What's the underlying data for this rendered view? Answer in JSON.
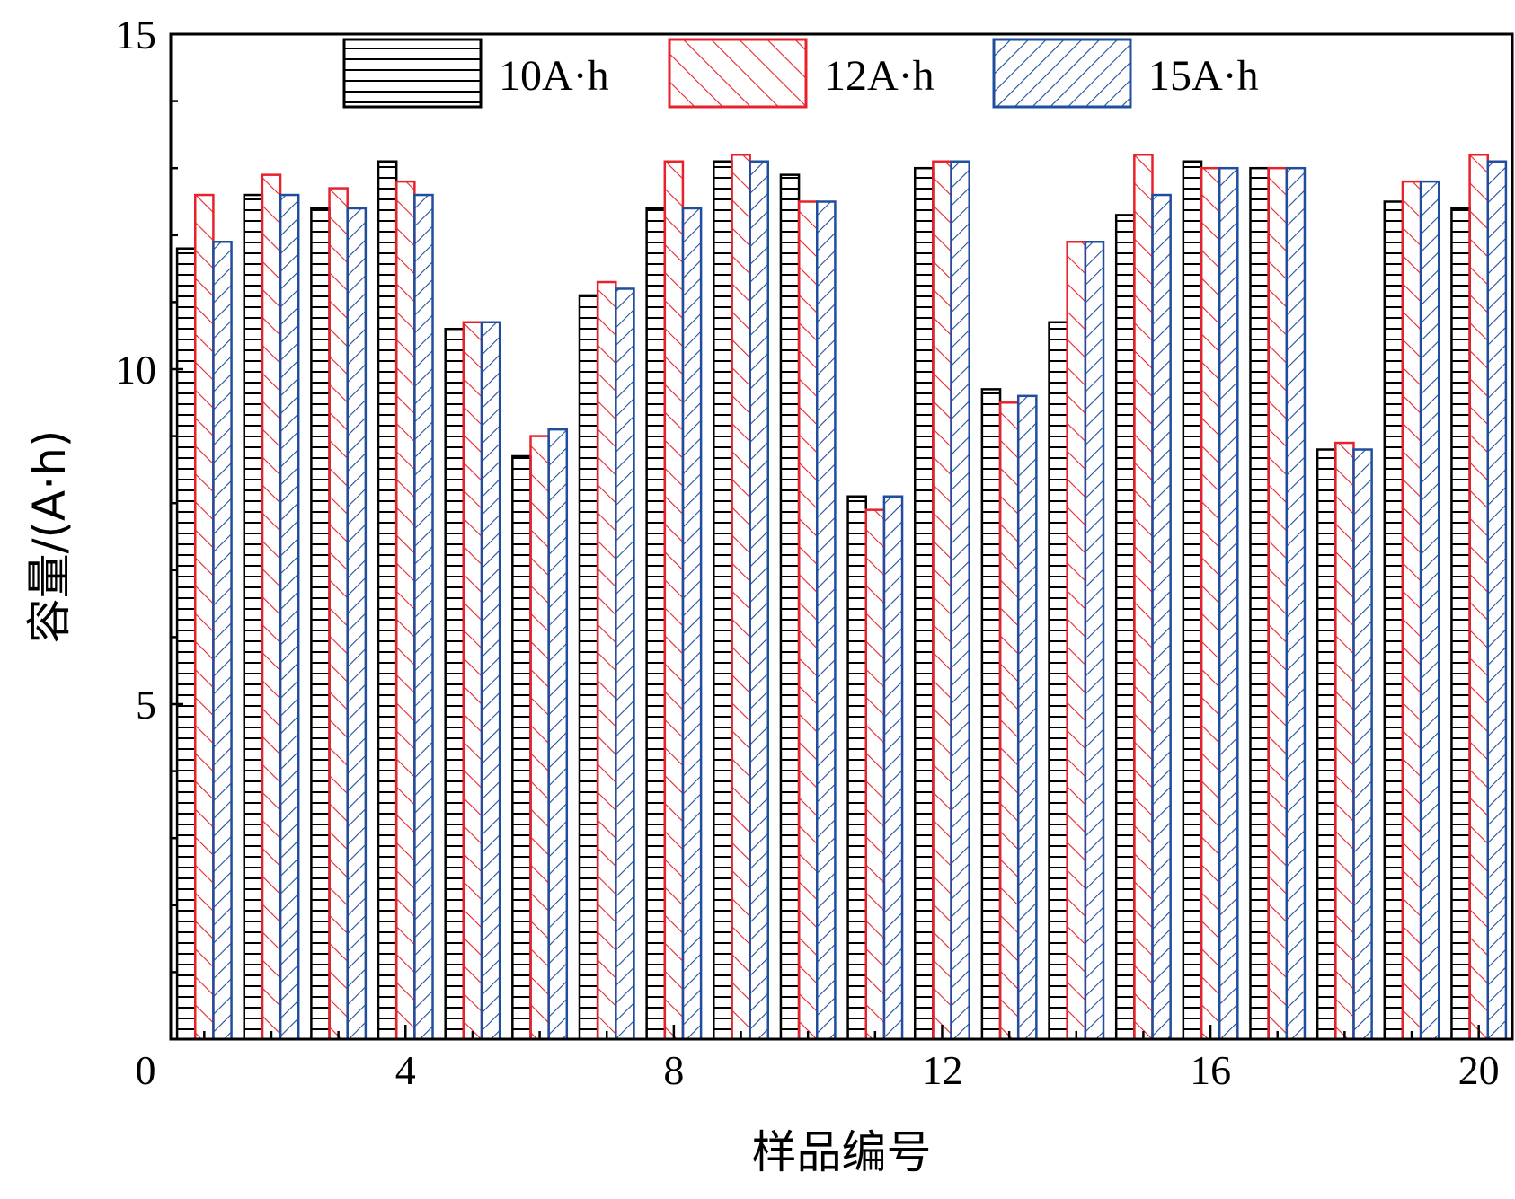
{
  "chart_data": {
    "type": "bar",
    "xlabel": "样品编号",
    "ylabel": "容量/(A·h)",
    "xlim": [
      0.5,
      20.5
    ],
    "ylim": [
      0,
      15
    ],
    "x_ticks": [
      "0",
      "4",
      "8",
      "12",
      "16",
      "20"
    ],
    "y_ticks": [
      "0",
      "5",
      "10",
      "15"
    ],
    "grid": false,
    "legend_position": "top-center",
    "categories": [
      "1",
      "2",
      "3",
      "4",
      "5",
      "6",
      "7",
      "8",
      "9",
      "10",
      "11",
      "12",
      "13",
      "14",
      "15",
      "16",
      "17",
      "18",
      "19",
      "20"
    ],
    "series": [
      {
        "name": "10A·h",
        "color": "#000000",
        "pattern": "horizontal-lines",
        "values": [
          11.8,
          12.6,
          12.4,
          13.1,
          10.6,
          8.7,
          11.1,
          12.4,
          13.1,
          12.9,
          8.1,
          13.0,
          9.7,
          10.7,
          12.3,
          13.1,
          13.0,
          8.8,
          12.5,
          12.4
        ]
      },
      {
        "name": "12A·h",
        "color": "#e8222c",
        "pattern": "back-diagonal-lines",
        "values": [
          12.6,
          12.9,
          12.7,
          12.8,
          10.7,
          9.0,
          11.3,
          13.1,
          13.2,
          12.5,
          7.9,
          13.1,
          9.5,
          11.9,
          13.2,
          13.0,
          13.0,
          8.9,
          12.8,
          13.2
        ]
      },
      {
        "name": "15A·h",
        "color": "#1f4e9e",
        "pattern": "forward-diagonal-lines",
        "values": [
          11.9,
          12.6,
          12.4,
          12.6,
          10.7,
          9.1,
          11.2,
          12.4,
          13.1,
          12.5,
          8.1,
          13.1,
          9.6,
          11.9,
          12.6,
          13.0,
          13.0,
          8.8,
          12.8,
          13.1
        ]
      }
    ]
  }
}
